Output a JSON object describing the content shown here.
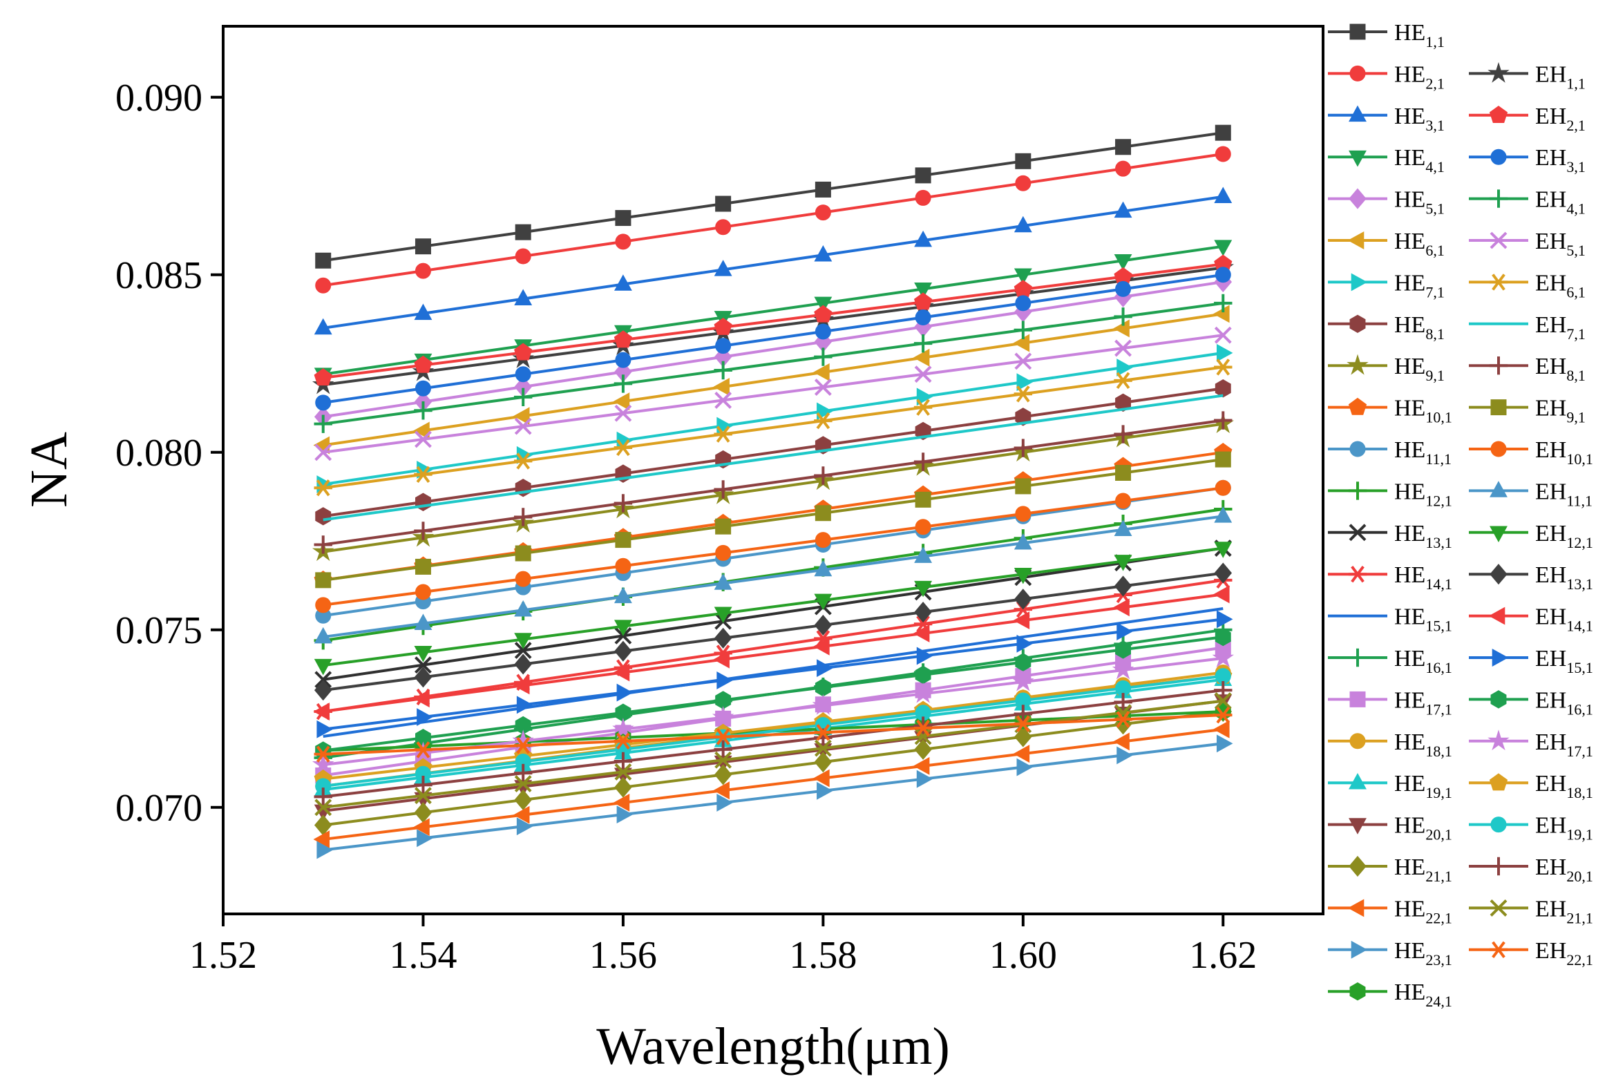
{
  "chart_data": {
    "type": "line",
    "title": "",
    "xlabel": "Wavelength(μm)",
    "ylabel": "NA",
    "xlim": [
      1.52,
      1.63
    ],
    "ylim": [
      0.067,
      0.092
    ],
    "x": [
      1.53,
      1.54,
      1.55,
      1.56,
      1.57,
      1.58,
      1.59,
      1.6,
      1.61,
      1.62
    ],
    "xticks": [
      "1.52",
      "1.54",
      "1.56",
      "1.58",
      "1.60",
      "1.62"
    ],
    "yticks": [
      "0.070",
      "0.075",
      "0.080",
      "0.085",
      "0.090"
    ],
    "legend_position": "right",
    "series": [
      {
        "name": "HE1,1",
        "base": "HE",
        "sub": "1,1",
        "color": "#404040",
        "marker": "square",
        "start": 0.0854,
        "end": 0.089
      },
      {
        "name": "HE2,1",
        "base": "HE",
        "sub": "2,1",
        "color": "#f03c3c",
        "marker": "circle",
        "start": 0.0847,
        "end": 0.0884
      },
      {
        "name": "HE3,1",
        "base": "HE",
        "sub": "3,1",
        "color": "#1f6fd6",
        "marker": "triangle-up",
        "start": 0.0835,
        "end": 0.0872
      },
      {
        "name": "HE4,1",
        "base": "HE",
        "sub": "4,1",
        "color": "#1fa050",
        "marker": "triangle-down",
        "start": 0.0822,
        "end": 0.0858
      },
      {
        "name": "HE5,1",
        "base": "HE",
        "sub": "5,1",
        "color": "#c882dc",
        "marker": "diamond",
        "start": 0.081,
        "end": 0.0848
      },
      {
        "name": "HE6,1",
        "base": "HE",
        "sub": "6,1",
        "color": "#dca020",
        "marker": "triangle-left",
        "start": 0.0802,
        "end": 0.0839
      },
      {
        "name": "HE7,1",
        "base": "HE",
        "sub": "7,1",
        "color": "#1ec8c8",
        "marker": "triangle-right",
        "start": 0.0791,
        "end": 0.0828
      },
      {
        "name": "HE8,1",
        "base": "HE",
        "sub": "8,1",
        "color": "#8c4040",
        "marker": "hexagon",
        "start": 0.0782,
        "end": 0.0818
      },
      {
        "name": "HE9,1",
        "base": "HE",
        "sub": "9,1",
        "color": "#8c8c1e",
        "marker": "star",
        "start": 0.0772,
        "end": 0.0808
      },
      {
        "name": "HE10,1",
        "base": "HE",
        "sub": "10,1",
        "color": "#f56414",
        "marker": "pentagon",
        "start": 0.0764,
        "end": 0.08
      },
      {
        "name": "HE11,1",
        "base": "HE",
        "sub": "11,1",
        "color": "#4b96c8",
        "marker": "circle",
        "start": 0.0754,
        "end": 0.079
      },
      {
        "name": "HE12,1",
        "base": "HE",
        "sub": "12,1",
        "color": "#28a028",
        "marker": "plus",
        "start": 0.0747,
        "end": 0.0784
      },
      {
        "name": "HE13,1",
        "base": "HE",
        "sub": "13,1",
        "color": "#303030",
        "marker": "cross",
        "start": 0.0736,
        "end": 0.0773
      },
      {
        "name": "HE14,1",
        "base": "HE",
        "sub": "14,1",
        "color": "#f03c3c",
        "marker": "asterisk",
        "start": 0.0727,
        "end": 0.0764
      },
      {
        "name": "HE15,1",
        "base": "HE",
        "sub": "15,1",
        "color": "#1f6fd6",
        "marker": "none",
        "start": 0.072,
        "end": 0.0756
      },
      {
        "name": "HE16,1",
        "base": "HE",
        "sub": "16,1",
        "color": "#1fa050",
        "marker": "plus",
        "start": 0.0714,
        "end": 0.075
      },
      {
        "name": "HE17,1",
        "base": "HE",
        "sub": "17,1",
        "color": "#c882dc",
        "marker": "square",
        "start": 0.0709,
        "end": 0.0745
      },
      {
        "name": "HE18,1",
        "base": "HE",
        "sub": "18,1",
        "color": "#dca020",
        "marker": "circle",
        "start": 0.0706,
        "end": 0.0738
      },
      {
        "name": "HE19,1",
        "base": "HE",
        "sub": "19,1",
        "color": "#1ec8c8",
        "marker": "triangle-up",
        "start": 0.0705,
        "end": 0.0736
      },
      {
        "name": "HE20,1",
        "base": "HE",
        "sub": "20,1",
        "color": "#8c4040",
        "marker": "triangle-down",
        "start": 0.0699,
        "end": 0.073
      },
      {
        "name": "HE21,1",
        "base": "HE",
        "sub": "21,1",
        "color": "#8c8c1e",
        "marker": "diamond",
        "start": 0.0695,
        "end": 0.0727
      },
      {
        "name": "HE22,1",
        "base": "HE",
        "sub": "22,1",
        "color": "#f56414",
        "marker": "triangle-left",
        "start": 0.0691,
        "end": 0.0722
      },
      {
        "name": "HE23,1",
        "base": "HE",
        "sub": "23,1",
        "color": "#4b96c8",
        "marker": "triangle-right",
        "start": 0.0688,
        "end": 0.0718
      },
      {
        "name": "HE24,1",
        "base": "HE",
        "sub": "24,1",
        "color": "#28a028",
        "marker": "hexagon",
        "start": 0.0716,
        "end": 0.0727
      },
      {
        "name": "EH1,1",
        "base": "EH",
        "sub": "1,1",
        "color": "#404040",
        "marker": "star",
        "start": 0.0819,
        "end": 0.0852
      },
      {
        "name": "EH2,1",
        "base": "EH",
        "sub": "2,1",
        "color": "#f03c3c",
        "marker": "pentagon",
        "start": 0.0821,
        "end": 0.0853
      },
      {
        "name": "EH3,1",
        "base": "EH",
        "sub": "3,1",
        "color": "#1f6fd6",
        "marker": "circle",
        "start": 0.0814,
        "end": 0.085
      },
      {
        "name": "EH4,1",
        "base": "EH",
        "sub": "4,1",
        "color": "#1fa050",
        "marker": "plus",
        "start": 0.0808,
        "end": 0.0842
      },
      {
        "name": "EH5,1",
        "base": "EH",
        "sub": "5,1",
        "color": "#c882dc",
        "marker": "cross",
        "start": 0.08,
        "end": 0.0833
      },
      {
        "name": "EH6,1",
        "base": "EH",
        "sub": "6,1",
        "color": "#dca020",
        "marker": "asterisk",
        "start": 0.079,
        "end": 0.0824
      },
      {
        "name": "EH7,1",
        "base": "EH",
        "sub": "7,1",
        "color": "#1ec8c8",
        "marker": "none",
        "start": 0.0781,
        "end": 0.0816
      },
      {
        "name": "EH8,1",
        "base": "EH",
        "sub": "8,1",
        "color": "#8c4040",
        "marker": "plus",
        "start": 0.0774,
        "end": 0.0809
      },
      {
        "name": "EH9,1",
        "base": "EH",
        "sub": "9,1",
        "color": "#8c8c1e",
        "marker": "square",
        "start": 0.0764,
        "end": 0.0798
      },
      {
        "name": "EH10,1",
        "base": "EH",
        "sub": "10,1",
        "color": "#f56414",
        "marker": "circle",
        "start": 0.0757,
        "end": 0.079
      },
      {
        "name": "EH11,1",
        "base": "EH",
        "sub": "11,1",
        "color": "#4b96c8",
        "marker": "triangle-up",
        "start": 0.0748,
        "end": 0.0782
      },
      {
        "name": "EH12,1",
        "base": "EH",
        "sub": "12,1",
        "color": "#28a028",
        "marker": "triangle-down",
        "start": 0.074,
        "end": 0.0773
      },
      {
        "name": "EH13,1",
        "base": "EH",
        "sub": "13,1",
        "color": "#404040",
        "marker": "diamond",
        "start": 0.0733,
        "end": 0.0766
      },
      {
        "name": "EH14,1",
        "base": "EH",
        "sub": "14,1",
        "color": "#f03c3c",
        "marker": "triangle-left",
        "start": 0.0727,
        "end": 0.076
      },
      {
        "name": "EH15,1",
        "base": "EH",
        "sub": "15,1",
        "color": "#1f6fd6",
        "marker": "triangle-right",
        "start": 0.0722,
        "end": 0.0753
      },
      {
        "name": "EH16,1",
        "base": "EH",
        "sub": "16,1",
        "color": "#1fa050",
        "marker": "hexagon",
        "start": 0.0716,
        "end": 0.0748
      },
      {
        "name": "EH17,1",
        "base": "EH",
        "sub": "17,1",
        "color": "#c882dc",
        "marker": "star",
        "start": 0.0712,
        "end": 0.0742
      },
      {
        "name": "EH18,1",
        "base": "EH",
        "sub": "18,1",
        "color": "#dca020",
        "marker": "pentagon",
        "start": 0.0708,
        "end": 0.0737
      },
      {
        "name": "EH19,1",
        "base": "EH",
        "sub": "19,1",
        "color": "#1ec8c8",
        "marker": "circle",
        "start": 0.0706,
        "end": 0.0737
      },
      {
        "name": "EH20,1",
        "base": "EH",
        "sub": "20,1",
        "color": "#8c4040",
        "marker": "plus",
        "start": 0.0703,
        "end": 0.0733
      },
      {
        "name": "EH21,1",
        "base": "EH",
        "sub": "21,1",
        "color": "#8c8c1e",
        "marker": "cross",
        "start": 0.07,
        "end": 0.073
      },
      {
        "name": "EH22,1",
        "base": "EH",
        "sub": "22,1",
        "color": "#f56414",
        "marker": "asterisk",
        "start": 0.0715,
        "end": 0.0726
      }
    ]
  }
}
